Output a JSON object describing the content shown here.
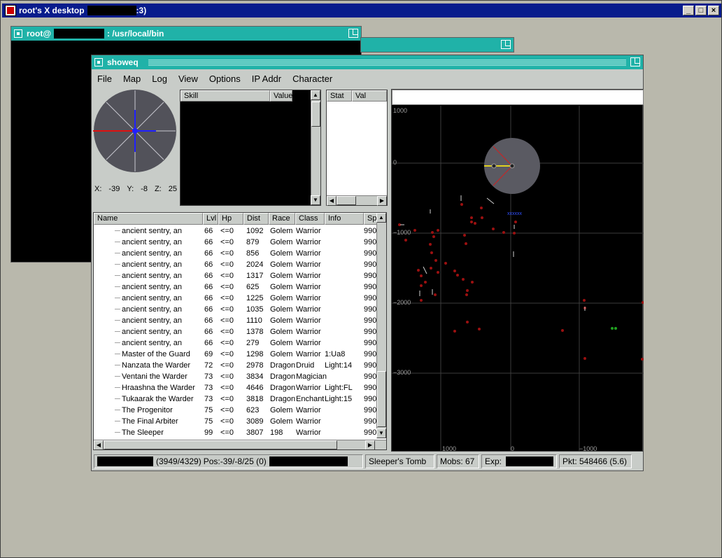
{
  "desktop": {
    "title": "root's X desktop",
    "title_suffix": ":3)",
    "controls": [
      "_",
      "□",
      "×"
    ]
  },
  "terminal": {
    "title_prefix": "root@",
    "title_suffix": ": /usr/local/bin"
  },
  "showeq": {
    "title": "showeq",
    "menu": [
      "File",
      "Map",
      "Log",
      "View",
      "Options",
      "IP Addr",
      "Character"
    ],
    "compass": {
      "x_label": "X:",
      "x_value": "-39",
      "y_label": "Y:",
      "y_value": "-8",
      "z_label": "Z:",
      "z_value": "25"
    },
    "skills": {
      "col_skill": "Skill",
      "col_value": "Value"
    },
    "stats": {
      "col_stat": "Stat",
      "col_val": "Val"
    },
    "spawn_list": {
      "columns": [
        "Name",
        "Lvl",
        "Hp",
        "Dist",
        "Race",
        "Class",
        "Info",
        "Sp"
      ],
      "rows": [
        [
          "ancient sentry, an",
          "66",
          "<=0",
          "1092",
          "Golem",
          "Warrior",
          "",
          "990"
        ],
        [
          "ancient sentry, an",
          "66",
          "<=0",
          "879",
          "Golem",
          "Warrior",
          "",
          "990"
        ],
        [
          "ancient sentry, an",
          "66",
          "<=0",
          "856",
          "Golem",
          "Warrior",
          "",
          "990"
        ],
        [
          "ancient sentry, an",
          "66",
          "<=0",
          "2024",
          "Golem",
          "Warrior",
          "",
          "990"
        ],
        [
          "ancient sentry, an",
          "66",
          "<=0",
          "1317",
          "Golem",
          "Warrior",
          "",
          "990"
        ],
        [
          "ancient sentry, an",
          "66",
          "<=0",
          "625",
          "Golem",
          "Warrior",
          "",
          "990"
        ],
        [
          "ancient sentry, an",
          "66",
          "<=0",
          "1225",
          "Golem",
          "Warrior",
          "",
          "990"
        ],
        [
          "ancient sentry, an",
          "66",
          "<=0",
          "1035",
          "Golem",
          "Warrior",
          "",
          "990"
        ],
        [
          "ancient sentry, an",
          "66",
          "<=0",
          "1110",
          "Golem",
          "Warrior",
          "",
          "990"
        ],
        [
          "ancient sentry, an",
          "66",
          "<=0",
          "1378",
          "Golem",
          "Warrior",
          "",
          "990"
        ],
        [
          "ancient sentry, an",
          "66",
          "<=0",
          "279",
          "Golem",
          "Warrior",
          "",
          "990"
        ],
        [
          "Master of the Guard",
          "69",
          "<=0",
          "1298",
          "Golem",
          "Warrior",
          "1:Ua8",
          "990"
        ],
        [
          "Nanzata the Warder",
          "72",
          "<=0",
          "2978",
          "Dragon",
          "Druid",
          "Light:14",
          "990"
        ],
        [
          "Ventani the Warder",
          "73",
          "<=0",
          "3834",
          "Dragon",
          "Magician",
          "",
          "990"
        ],
        [
          "Hraashna the Warder",
          "73",
          "<=0",
          "4646",
          "Dragon",
          "Warrior",
          "Light:FL",
          "990"
        ],
        [
          "Tukaarak the Warder",
          "73",
          "<=0",
          "3818",
          "Dragon",
          "Enchant",
          "Light:15",
          "990"
        ],
        [
          "The Progenitor",
          "75",
          "<=0",
          "623",
          "Golem",
          "Warrior",
          "",
          "990"
        ],
        [
          "The Final Arbiter",
          "75",
          "<=0",
          "3089",
          "Golem",
          "Warrior",
          "",
          "990"
        ],
        [
          "The Sleeper",
          "99",
          "<=0",
          "3807",
          "198",
          "Warrior",
          "",
          "990"
        ]
      ]
    },
    "map": {
      "y_ticks": [
        "1000",
        "0",
        "−1000",
        "−2000",
        "−3000"
      ],
      "x_ticks": [
        "1000",
        "0",
        "−1000"
      ]
    },
    "status": {
      "count": "(3949/4329)",
      "pos": "Pos:-39/-8/25 (0)",
      "zone": "Sleeper's Tomb",
      "mobs": "Mobs: 67",
      "exp": "Exp:",
      "pkt": "Pkt: 548466 (5.6)"
    }
  }
}
